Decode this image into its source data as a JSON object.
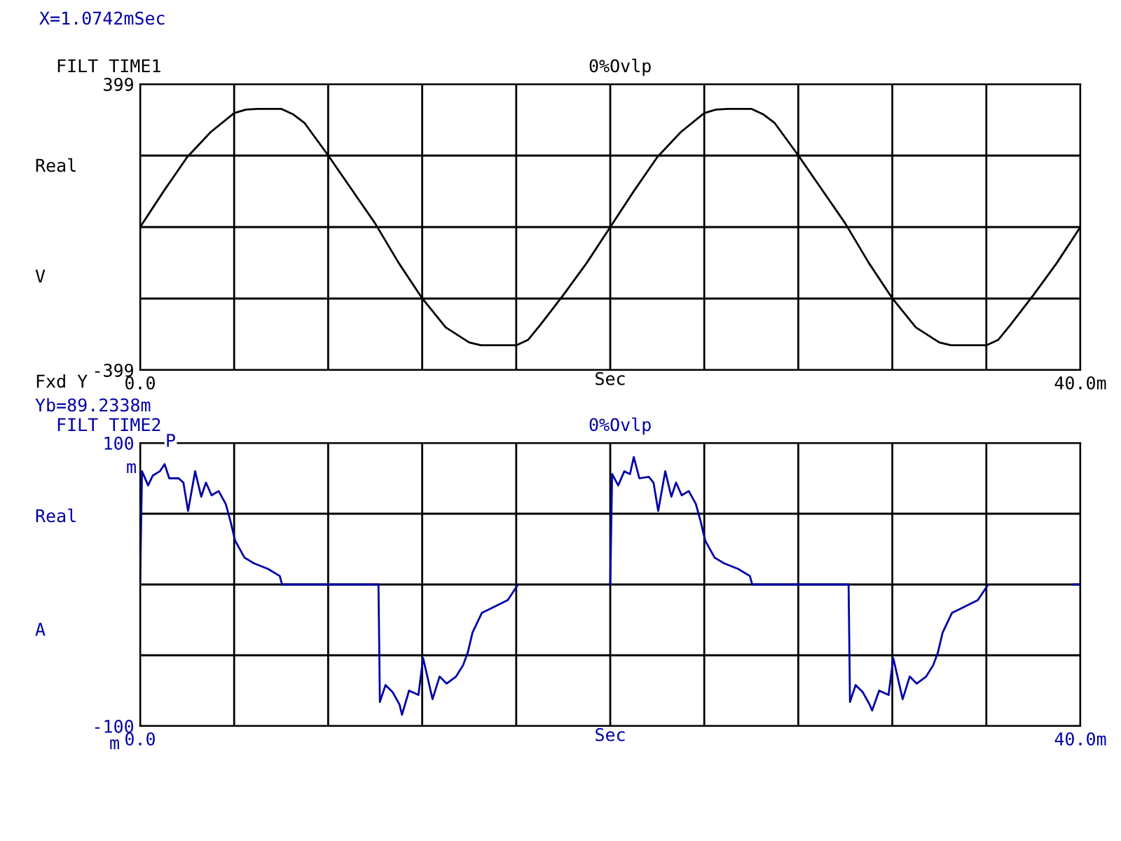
{
  "chart_data": [
    {
      "type": "line",
      "title": "FILT TIME1",
      "subtitle": "0%Ovlp",
      "xlabel": "Sec",
      "annotations": [
        "Real",
        "V",
        "Fxd Y"
      ],
      "xlim": [
        0,
        40
      ],
      "xticks": [
        {
          "value": 0,
          "label": "0.0"
        },
        {
          "value": 4,
          "label": null
        },
        {
          "value": 8,
          "label": null
        },
        {
          "value": 12,
          "label": null
        },
        {
          "value": 16,
          "label": null
        },
        {
          "value": 20,
          "label": null
        },
        {
          "value": 24,
          "label": null
        },
        {
          "value": 28,
          "label": null
        },
        {
          "value": 32,
          "label": null
        },
        {
          "value": 36,
          "label": null
        },
        {
          "value": 40,
          "label": "40.0m"
        }
      ],
      "ylim": [
        -399,
        399
      ],
      "yticks": [
        -399,
        {
          "value": -199.5,
          "label": null
        },
        {
          "value": 0,
          "label": null
        },
        {
          "value": 199.5,
          "label": null
        },
        399
      ],
      "grid": true,
      "legend": false,
      "marker": "none",
      "line_style": "solid",
      "series": [
        {
          "color": "#000000",
          "x": [
            0,
            1,
            2,
            3,
            4,
            4.5,
            5,
            6,
            6.5,
            7,
            8,
            9,
            10,
            11,
            12,
            13,
            14,
            14.5,
            15,
            16,
            16.5,
            17,
            18,
            19,
            20,
            21,
            22,
            23,
            24,
            24.5,
            25,
            26,
            26.5,
            27,
            28,
            29,
            30,
            31,
            32,
            33,
            34,
            34.5,
            35,
            36,
            36.5,
            37,
            38,
            39,
            40
          ],
          "values": [
            0,
            100,
            195,
            265,
            318,
            328,
            330,
            330,
            315,
            290,
            200,
            105,
            10,
            -100,
            -199,
            -280,
            -322,
            -330,
            -330,
            -330,
            -315,
            -275,
            -190,
            -100,
            0,
            100,
            195,
            265,
            318,
            328,
            330,
            330,
            315,
            290,
            200,
            105,
            10,
            -100,
            -199,
            -280,
            -322,
            -330,
            -330,
            -330,
            -315,
            -275,
            -190,
            -100,
            0
          ]
        }
      ]
    },
    {
      "type": "line",
      "title": "FILT TIME2",
      "subtitle": "0%Ovlp",
      "xlabel": "Sec",
      "annotations": [
        "X=1.0742mSec",
        "Yb=89.2338m",
        "Real",
        "A",
        "m",
        "m",
        {
          "text": "P",
          "x": 1.0742,
          "y": 89.2338
        }
      ],
      "xlim": [
        0,
        40
      ],
      "xticks": [
        {
          "value": 0,
          "label": "0.0"
        },
        {
          "value": 4,
          "label": null
        },
        {
          "value": 8,
          "label": null
        },
        {
          "value": 12,
          "label": null
        },
        {
          "value": 16,
          "label": null
        },
        {
          "value": 20,
          "label": null
        },
        {
          "value": 24,
          "label": null
        },
        {
          "value": 28,
          "label": null
        },
        {
          "value": 32,
          "label": null
        },
        {
          "value": 36,
          "label": null
        },
        {
          "value": 40,
          "label": "40.0m"
        }
      ],
      "ylim": [
        -100,
        100
      ],
      "yticks": [
        -100,
        {
          "value": -50,
          "label": null
        },
        {
          "value": 0,
          "label": null
        },
        {
          "value": 50,
          "label": null
        },
        100
      ],
      "grid": true,
      "legend": false,
      "marker": "none",
      "line_style": "solid",
      "series": [
        {
          "color": "#0000a8",
          "x": [
            0,
            0.08,
            0.34,
            0.54,
            0.84,
            1.04,
            1.24,
            1.64,
            1.84,
            2.04,
            2.34,
            2.6,
            2.8,
            3.04,
            3.34,
            3.64,
            3.84,
            4.04,
            4.44,
            4.84,
            5.44,
            5.94,
            6.04,
            10.14,
            10.2,
            10.44,
            10.74,
            11.04,
            11.14,
            11.44,
            11.84,
            12.04,
            12.44,
            12.74,
            13.04,
            13.44,
            13.74,
            13.94,
            14.14,
            14.54,
            15.04,
            15.64,
            16.04,
            18,
            20.0,
            20.08,
            20.34,
            20.6,
            20.84,
            21.0,
            21.24,
            21.64,
            21.84,
            22.04,
            22.34,
            22.6,
            22.8,
            23.04,
            23.34,
            23.64,
            23.84,
            24.04,
            24.44,
            24.84,
            25.44,
            25.94,
            26.04,
            30.14,
            30.2,
            30.44,
            30.74,
            31.04,
            31.14,
            31.44,
            31.84,
            32.04,
            32.44,
            32.74,
            33.04,
            33.44,
            33.74,
            33.94,
            34.14,
            34.54,
            35.04,
            35.64,
            36.04,
            38,
            39.7,
            40
          ],
          "values": [
            0,
            80,
            70,
            77,
            80,
            85,
            75,
            75,
            72,
            52,
            80,
            62,
            72,
            63,
            66,
            57,
            45,
            31,
            19,
            15,
            11,
            6,
            0,
            0,
            -83,
            -71,
            -76,
            -85,
            -92,
            -75,
            -78,
            -52,
            -81,
            -65,
            -70,
            -65,
            -57,
            -48,
            -34,
            -20,
            -16,
            -11,
            -1,
            null,
            0,
            78,
            70,
            80,
            78,
            90,
            75,
            76,
            72,
            52,
            80,
            62,
            72,
            63,
            66,
            57,
            45,
            31,
            19,
            15,
            11,
            6,
            0,
            0,
            -83,
            -71,
            -76,
            -85,
            -89,
            -75,
            -78,
            -52,
            -81,
            -65,
            -70,
            -65,
            -57,
            -48,
            -34,
            -20,
            -16,
            -11,
            -1,
            null,
            0,
            0
          ]
        }
      ]
    }
  ]
}
